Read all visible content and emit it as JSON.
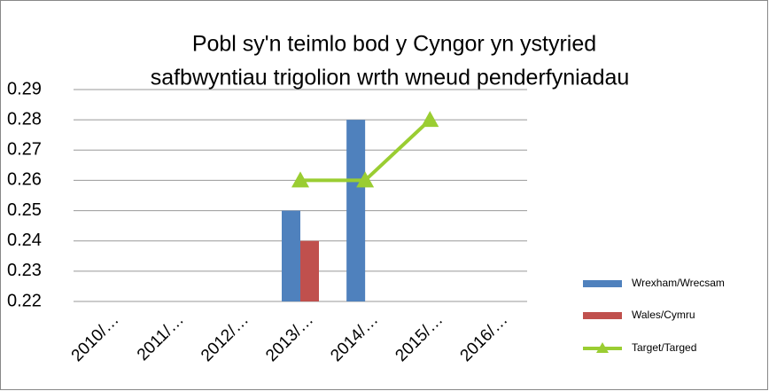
{
  "chart_data": {
    "type": "bar",
    "title": [
      "Pobl sy'n teimlo bod y Cyngor yn ystyried",
      "safbwyntiau trigolion wrth wneud penderfyniadau"
    ],
    "categories": [
      "2010/…",
      "2011/…",
      "2012/…",
      "2013/…",
      "2014/…",
      "2015/…",
      "2016/…"
    ],
    "series": [
      {
        "name": "Wrexham/Wrecsam",
        "color": "#4f81bd",
        "values": [
          null,
          null,
          null,
          0.25,
          0.28,
          null,
          null
        ]
      },
      {
        "name": "Wales/Cymru",
        "color": "#c0504d",
        "values": [
          null,
          null,
          null,
          0.24,
          null,
          null,
          null
        ]
      },
      {
        "name": "Target/Targed",
        "type": "line",
        "color": "#9acd32",
        "values": [
          null,
          null,
          null,
          0.26,
          0.26,
          0.28,
          null
        ]
      }
    ],
    "ylim": [
      0.22,
      0.29
    ],
    "yticks": [
      0.22,
      0.23,
      0.24,
      0.25,
      0.26,
      0.27,
      0.28,
      0.29
    ],
    "grid": true,
    "legend": "right"
  }
}
